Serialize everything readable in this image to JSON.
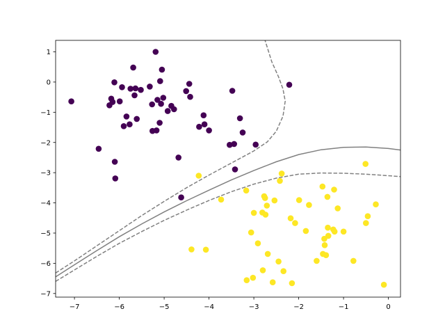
{
  "chart_data": {
    "type": "scatter",
    "title": "",
    "xlabel": "",
    "ylabel": "",
    "xlim": [
      -7.42,
      0.27
    ],
    "ylim": [
      -7.12,
      1.38
    ],
    "grid": false,
    "x_ticks": [
      -7,
      -6,
      -5,
      -4,
      -3,
      -2,
      -1,
      0
    ],
    "y_ticks": [
      1,
      0,
      -1,
      -2,
      -3,
      -4,
      -5,
      -6,
      -7
    ],
    "colors": {
      "class_0": "#440154",
      "class_1": "#fde725",
      "boundary": "#808080",
      "axes": "#000000"
    },
    "series": [
      {
        "class": "class_0",
        "points": [
          [
            -7.07,
            -0.64
          ],
          [
            -6.46,
            -2.21
          ],
          [
            -6.22,
            -0.77
          ],
          [
            -6.18,
            -0.55
          ],
          [
            -6.15,
            -0.66
          ],
          [
            -6.11,
            -0.01
          ],
          [
            -6.1,
            -2.64
          ],
          [
            -6.09,
            -3.19
          ],
          [
            -5.99,
            -0.64
          ],
          [
            -5.94,
            -0.17
          ],
          [
            -5.9,
            -1.46
          ],
          [
            -5.84,
            -1.14
          ],
          [
            -5.77,
            -1.4
          ],
          [
            -5.75,
            -0.22
          ],
          [
            -5.69,
            0.48
          ],
          [
            -5.66,
            -0.44
          ],
          [
            -5.64,
            -0.21
          ],
          [
            -5.61,
            -1.22
          ],
          [
            -5.52,
            -0.26
          ],
          [
            -5.32,
            -0.15
          ],
          [
            -5.27,
            -0.74
          ],
          [
            -5.26,
            -1.62
          ],
          [
            -5.19,
            1.0
          ],
          [
            -5.17,
            -1.6
          ],
          [
            -5.15,
            -0.59
          ],
          [
            -5.1,
            -1.35
          ],
          [
            -5.09,
            0.03
          ],
          [
            -5.07,
            -0.72
          ],
          [
            -5.05,
            0.41
          ],
          [
            -5.02,
            -0.52
          ],
          [
            -4.92,
            -0.96
          ],
          [
            -4.84,
            -0.79
          ],
          [
            -4.78,
            -0.9
          ],
          [
            -4.68,
            -2.5
          ],
          [
            -4.62,
            -3.82
          ],
          [
            -4.51,
            -0.3
          ],
          [
            -4.44,
            -0.06
          ],
          [
            -4.42,
            -0.49
          ],
          [
            -4.22,
            -1.48
          ],
          [
            -4.12,
            -1.1
          ],
          [
            -4.1,
            -1.4
          ],
          [
            -4.0,
            -1.6
          ],
          [
            -3.54,
            -2.08
          ],
          [
            -3.48,
            -0.29
          ],
          [
            -3.44,
            -2.05
          ],
          [
            -3.42,
            -2.89
          ],
          [
            -3.31,
            -1.2
          ],
          [
            -3.25,
            -1.67
          ],
          [
            -2.96,
            -2.07
          ],
          [
            -2.21,
            -0.09
          ]
        ]
      },
      {
        "class": "class_1",
        "points": [
          [
            -4.39,
            -5.54
          ],
          [
            -4.23,
            -3.1
          ],
          [
            -4.07,
            -5.55
          ],
          [
            -3.73,
            -3.89
          ],
          [
            -3.17,
            -3.59
          ],
          [
            -3.16,
            -6.56
          ],
          [
            -3.06,
            -4.98
          ],
          [
            -3.02,
            -6.48
          ],
          [
            -3.0,
            -4.33
          ],
          [
            -2.91,
            -5.34
          ],
          [
            -2.81,
            -4.32
          ],
          [
            -2.8,
            -6.23
          ],
          [
            -2.77,
            -3.78
          ],
          [
            -2.75,
            -3.84
          ],
          [
            -2.74,
            -4.39
          ],
          [
            -2.71,
            -4.09
          ],
          [
            -2.69,
            -5.69
          ],
          [
            -2.58,
            -6.63
          ],
          [
            -2.54,
            -3.92
          ],
          [
            -2.45,
            -5.94
          ],
          [
            -2.42,
            -3.27
          ],
          [
            -2.38,
            -3.03
          ],
          [
            -2.34,
            -6.26
          ],
          [
            -2.18,
            -4.51
          ],
          [
            -2.15,
            -6.66
          ],
          [
            -2.08,
            -4.67
          ],
          [
            -1.99,
            -3.91
          ],
          [
            -1.84,
            -4.93
          ],
          [
            -1.77,
            -4.07
          ],
          [
            -1.6,
            -5.92
          ],
          [
            -1.47,
            -3.46
          ],
          [
            -1.46,
            -5.69
          ],
          [
            -1.43,
            -5.19
          ],
          [
            -1.42,
            -5.4
          ],
          [
            -1.39,
            -5.73
          ],
          [
            -1.36,
            -3.8
          ],
          [
            -1.35,
            -4.82
          ],
          [
            -1.34,
            -5.09
          ],
          [
            -1.23,
            -4.88
          ],
          [
            -1.21,
            -3.56
          ],
          [
            -1.2,
            -4.95
          ],
          [
            -1.13,
            -4.18
          ],
          [
            -1.0,
            -4.95
          ],
          [
            -0.78,
            -5.92
          ],
          [
            -0.51,
            -2.71
          ],
          [
            -0.5,
            -4.67
          ],
          [
            -0.46,
            -4.44
          ],
          [
            -0.28,
            -4.05
          ],
          [
            -0.1,
            -6.71
          ]
        ]
      }
    ],
    "contours": [
      {
        "level": 0,
        "style": "solid",
        "points": [
          [
            -7.42,
            -6.45
          ],
          [
            -7.0,
            -6.05
          ],
          [
            -6.5,
            -5.58
          ],
          [
            -6.0,
            -5.12
          ],
          [
            -5.5,
            -4.7
          ],
          [
            -5.0,
            -4.3
          ],
          [
            -4.5,
            -3.93
          ],
          [
            -4.0,
            -3.58
          ],
          [
            -3.5,
            -3.24
          ],
          [
            -3.0,
            -2.93
          ],
          [
            -2.5,
            -2.64
          ],
          [
            -2.0,
            -2.4
          ],
          [
            -1.5,
            -2.24
          ],
          [
            -1.0,
            -2.16
          ],
          [
            -0.5,
            -2.15
          ],
          [
            0.0,
            -2.2
          ],
          [
            0.27,
            -2.25
          ]
        ]
      },
      {
        "level": -1,
        "style": "dashed",
        "points": [
          [
            -7.42,
            -6.6
          ],
          [
            -7.0,
            -6.22
          ],
          [
            -6.5,
            -5.77
          ],
          [
            -6.0,
            -5.34
          ],
          [
            -5.5,
            -4.95
          ],
          [
            -5.0,
            -4.58
          ],
          [
            -4.5,
            -4.24
          ],
          [
            -4.0,
            -3.92
          ],
          [
            -3.5,
            -3.63
          ],
          [
            -3.0,
            -3.38
          ],
          [
            -2.5,
            -3.18
          ],
          [
            -2.0,
            -3.05
          ],
          [
            -1.5,
            -3.01
          ],
          [
            -1.0,
            -3.02
          ],
          [
            -0.5,
            -3.05
          ],
          [
            0.0,
            -3.1
          ],
          [
            0.27,
            -3.13
          ]
        ]
      },
      {
        "level": 1,
        "style": "dashed",
        "points": [
          [
            -7.42,
            -6.32
          ],
          [
            -7.0,
            -5.92
          ],
          [
            -6.5,
            -5.42
          ],
          [
            -6.0,
            -4.92
          ],
          [
            -5.5,
            -4.42
          ],
          [
            -5.0,
            -3.95
          ],
          [
            -4.5,
            -3.5
          ],
          [
            -4.0,
            -3.08
          ],
          [
            -3.5,
            -2.68
          ],
          [
            -3.0,
            -2.28
          ],
          [
            -2.7,
            -1.98
          ],
          [
            -2.5,
            -1.63
          ],
          [
            -2.35,
            -1.13
          ],
          [
            -2.3,
            -0.63
          ],
          [
            -2.35,
            -0.23
          ],
          [
            -2.45,
            0.17
          ],
          [
            -2.6,
            0.67
          ],
          [
            -2.75,
            1.38
          ]
        ]
      }
    ]
  }
}
